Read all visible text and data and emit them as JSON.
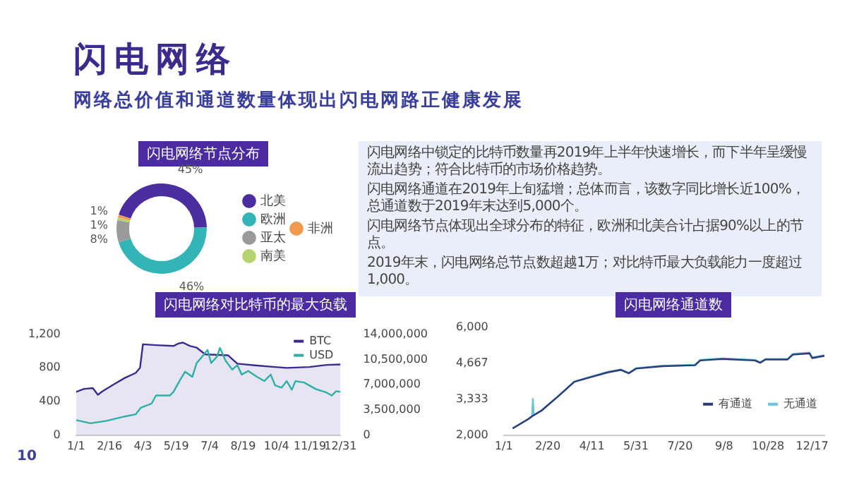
{
  "chart_data": [
    {
      "type": "other",
      "title": "闪电网络",
      "subtitle": "网络总价值和通道数量体现出闪电网路正健康发展",
      "annotations": [
        "闪电网络中锁定的比特币数量再2019年上半年快速增长，而下半年呈缓慢流出趋势；符合比特币的市场价格趋势。",
        "闪电网络通道在2019年上旬猛增；总体而言，该数字同比增长近100%，总通道数于2019年末达到5,000个。",
        "闪电网络节点体现出全球分布的特征，欧洲和北美合计占据90%以上的节点。",
        "2019年末，闪电网络总节点数超越1万；对比特币最大负载能力一度超过1,000。",
        "10"
      ]
    },
    {
      "type": "donut",
      "title": "闪电网络节点分布",
      "categories": [
        "北美",
        "欧洲",
        "亚太",
        "南美",
        "非洲"
      ],
      "values": [
        45,
        46,
        8,
        1,
        1
      ],
      "colors": [
        "#4a2d9e",
        "#33b5b8",
        "#9a9a9a",
        "#b7d36e",
        "#ef9a4f"
      ],
      "value_labels": [
        "45%",
        "46%",
        "8%",
        "1%",
        "1%"
      ],
      "legend": "right"
    },
    {
      "type": "line",
      "title": "闪电网络对比特币的最大负载",
      "legend": "top right",
      "marker": "none",
      "xlim": [
        "--01-01",
        "--12-31"
      ],
      "xticks": [
        {
          "value": "--01-01",
          "label": "1/1"
        },
        {
          "value": "--02-16",
          "label": "2/16"
        },
        {
          "value": "--04-03",
          "label": "4/3"
        },
        {
          "value": "--05-19",
          "label": "5/19"
        },
        {
          "value": "--07-04",
          "label": "7/4"
        },
        {
          "value": "--08-19",
          "label": "8/19"
        },
        {
          "value": "--10-04",
          "label": "10/4"
        },
        {
          "value": "--11-19",
          "label": "11/19"
        },
        {
          "value": "--12-31",
          "label": "12/31"
        }
      ],
      "ylim": [
        0,
        1200
      ],
      "yticks": [
        0,
        400,
        800,
        {
          "value": 1200,
          "label": "1,200"
        }
      ],
      "y2lim": [
        0,
        14000000
      ],
      "y2ticks": [
        0,
        {
          "value": 3500000,
          "label": "3,500,000"
        },
        {
          "value": 7000000,
          "label": "7,000,000"
        },
        {
          "value": 10500000,
          "label": "10,500,000"
        },
        {
          "value": 14000000,
          "label": "14,000,000"
        }
      ],
      "series": [
        {
          "name": "BTC",
          "type": "area",
          "color": "#3d2a8c",
          "x": [
            "--01-01",
            "--01-12",
            "--01-24",
            "--01-31",
            "--02-06",
            "--02-21",
            "--03-09",
            "--03-24",
            "--03-30",
            "--04-03",
            "--04-21",
            "--05-15",
            "--05-22",
            "--05-28",
            "--06-07",
            "--06-16",
            "--06-28",
            "--07-29",
            "--08-11",
            "--09-04",
            "--10-02",
            "--10-18",
            "--11-18",
            "--12-12",
            "--12-31"
          ],
          "values": [
            515,
            550,
            560,
            480,
            520,
            600,
            680,
            740,
            800,
            1080,
            1070,
            1060,
            1090,
            1100,
            1060,
            1040,
            960,
            950,
            850,
            830,
            810,
            800,
            810,
            835,
            840
          ]
        },
        {
          "name": "USD",
          "axis": "y2",
          "color": "#2fb0a5",
          "x": [
            "--01-01",
            "--01-12",
            "--01-21",
            "--02-12",
            "--03-09",
            "--03-24",
            "--03-31",
            "--04-15",
            "--04-21",
            "--05-10",
            "--05-15",
            "--05-25",
            "--05-31",
            "--06-10",
            "--06-16",
            "--06-22",
            "--07-01",
            "--07-06",
            "--07-14",
            "--07-18",
            "--07-26",
            "--08-04",
            "--08-11",
            "--08-17",
            "--08-26",
            "--09-07",
            "--09-17",
            "--09-26",
            "--10-02",
            "--10-11",
            "--10-18",
            "--10-25",
            "--10-30",
            "--11-11",
            "--11-27",
            "--12-12",
            "--12-19",
            "--12-25",
            "--12-31"
          ],
          "values": [
            2100000,
            1850000,
            1650000,
            2000000,
            2600000,
            2900000,
            3800000,
            4400000,
            5500000,
            5500000,
            6000000,
            7800000,
            8800000,
            8100000,
            10000000,
            10700000,
            11800000,
            10000000,
            10900000,
            12100000,
            10300000,
            9100000,
            9700000,
            8400000,
            8900000,
            8100000,
            7500000,
            8400000,
            6900000,
            6600000,
            7500000,
            6300000,
            7500000,
            7300000,
            6400000,
            5900000,
            5500000,
            6100000,
            6000000
          ]
        }
      ]
    },
    {
      "type": "line",
      "title": "闪电网络通道数",
      "legend": "bottom right",
      "marker": "none",
      "xlim": [
        "--01-01",
        "--12-31"
      ],
      "xticks": [
        {
          "value": "--01-01",
          "label": "1/1"
        },
        {
          "value": "--02-20",
          "label": "2/20"
        },
        {
          "value": "--04-11",
          "label": "4/11"
        },
        {
          "value": "--05-31",
          "label": "5/31"
        },
        {
          "value": "--07-20",
          "label": "7/20"
        },
        {
          "value": "--09-08",
          "label": "9/8"
        },
        {
          "value": "--10-28",
          "label": "10/28"
        },
        {
          "value": "--12-17",
          "label": "12/17"
        }
      ],
      "ylim": [
        2000,
        6000
      ],
      "yticks": [
        {
          "value": 2000,
          "label": "2,000"
        },
        {
          "value": 3333,
          "label": "3,333"
        },
        {
          "value": 4667,
          "label": "4,667"
        },
        {
          "value": 6000,
          "label": "6,000"
        }
      ],
      "series": [
        {
          "name": "有通道",
          "color": "#2b3a78",
          "x": [
            "--01-11",
            "--01-29",
            "--02-02",
            "--02-13",
            "--03-04",
            "--03-22",
            "--04-10",
            "--04-29",
            "--05-14",
            "--05-23",
            "--05-31",
            "--06-30",
            "--08-06",
            "--08-12",
            "--09-06",
            "--10-13",
            "--10-19",
            "--10-25",
            "--11-19",
            "--11-25",
            "--12-14",
            "--12-17",
            "--12-31"
          ],
          "values": [
            2250,
            2600,
            2700,
            2915,
            3445,
            3975,
            4150,
            4325,
            4415,
            4290,
            4465,
            4555,
            4590,
            4765,
            4820,
            4765,
            4680,
            4800,
            4800,
            4980,
            5030,
            4855,
            4940
          ]
        },
        {
          "name": "无通道",
          "color": "#6cc3d3",
          "x": [
            "--01-11",
            "--01-29",
            "--02-02",
            "--02-03",
            "--02-04",
            "--02-13",
            "--03-04",
            "--03-22",
            "--04-10",
            "--04-29",
            "--05-14",
            "--05-23",
            "--05-31",
            "--06-30",
            "--08-06",
            "--08-12",
            "--09-06",
            "--10-13",
            "--10-19",
            "--10-25",
            "--11-19",
            "--11-25",
            "--12-14",
            "--12-17",
            "--12-31"
          ],
          "values": [
            2260,
            2610,
            2710,
            3350,
            2750,
            2930,
            3460,
            3990,
            4170,
            4345,
            4435,
            4310,
            4485,
            4575,
            4610,
            4790,
            4845,
            4790,
            4700,
            4820,
            4825,
            5010,
            5060,
            4880,
            4960
          ]
        }
      ]
    }
  ]
}
